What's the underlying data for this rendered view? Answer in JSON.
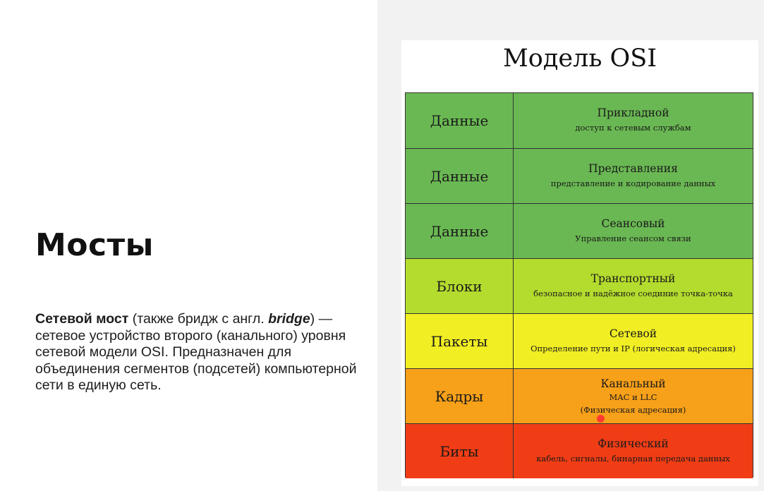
{
  "slide": {
    "title": "Мосты",
    "description": {
      "term": "Сетевой мост",
      "part1": " (также бридж с англ. ",
      "english": "bridge",
      "part2": ") — сетевое устройство второго (канального) уровня сетевой модели OSI. Предназначен для объединения сегментов (подсетей) компьютерной сети в единую сеть."
    }
  },
  "osi": {
    "title": "Модель OSI",
    "rows": [
      {
        "unit": "Данные",
        "layer": "Прикладной",
        "desc": "доступ к сетевым службам",
        "desc2": ""
      },
      {
        "unit": "Данные",
        "layer": "Представления",
        "desc": "представление и кодирование данных",
        "desc2": ""
      },
      {
        "unit": "Данные",
        "layer": "Сеансовый",
        "desc": "Управление сеансом связи",
        "desc2": ""
      },
      {
        "unit": "Блоки",
        "layer": "Транспортный",
        "desc": "безопасное и надёжное соединие точка-точка",
        "desc2": ""
      },
      {
        "unit": "Пакеты",
        "layer": "Сетевой",
        "desc": "Определение пути и IP (логическая адресация)",
        "desc2": ""
      },
      {
        "unit": "Кадры",
        "layer": "Канальный",
        "desc": "MAC и LLC",
        "desc2": "(Физическая адресация)"
      },
      {
        "unit": "Биты",
        "layer": "Физический",
        "desc": "кабель, сигналы, бинарная передача данных",
        "desc2": ""
      }
    ],
    "colors": {
      "green": "#6ab853",
      "lime": "#b4dc2e",
      "yellow": "#f1ee24",
      "orange": "#f7a019",
      "red": "#f03d15"
    }
  }
}
